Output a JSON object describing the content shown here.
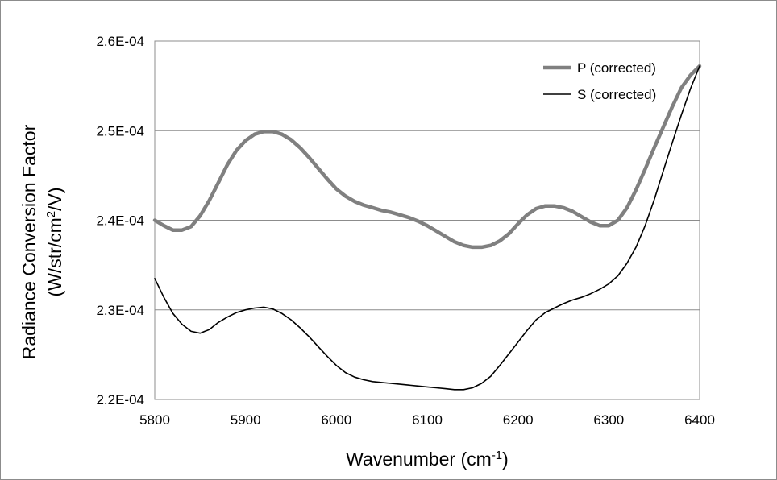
{
  "chart_data": {
    "type": "line",
    "title": "",
    "xlabel": {
      "base": "Wavenumber (cm",
      "sup": "-1",
      "tail": ")"
    },
    "ylabel": {
      "line1": "Radiance Conversion Factor",
      "line2_base": "(W/str/cm",
      "line2_sup": "2",
      "line2_tail": "/V)"
    },
    "xlim": [
      5800,
      6400
    ],
    "ylim": [
      0.00022,
      0.00026
    ],
    "xticks": [
      5800,
      5900,
      6000,
      6100,
      6200,
      6300,
      6400
    ],
    "xtick_labels": [
      "5800",
      "5900",
      "6000",
      "6100",
      "6200",
      "6300",
      "6400"
    ],
    "yticks": [
      0.00022,
      0.00023,
      0.00024,
      0.00025,
      0.00026
    ],
    "ytick_labels": [
      "2.2E-04",
      "2.3E-04",
      "2.4E-04",
      "2.5E-04",
      "2.6E-04"
    ],
    "grid": "horizontal",
    "legend_position": "top-right",
    "series": [
      {
        "name": "P (corrected)",
        "color": "#808080",
        "x": [
          5800,
          5810,
          5820,
          5830,
          5840,
          5850,
          5860,
          5870,
          5880,
          5890,
          5900,
          5910,
          5920,
          5930,
          5940,
          5950,
          5960,
          5970,
          5980,
          5990,
          6000,
          6010,
          6020,
          6030,
          6040,
          6050,
          6060,
          6070,
          6080,
          6090,
          6100,
          6110,
          6120,
          6130,
          6140,
          6150,
          6160,
          6170,
          6180,
          6190,
          6200,
          6210,
          6220,
          6230,
          6240,
          6250,
          6260,
          6270,
          6280,
          6290,
          6300,
          6310,
          6320,
          6330,
          6340,
          6350,
          6360,
          6370,
          6380,
          6390,
          6400
        ],
        "y": [
          0.00024,
          0.0002394,
          0.0002389,
          0.0002389,
          0.0002393,
          0.0002405,
          0.0002422,
          0.0002442,
          0.0002462,
          0.0002478,
          0.0002489,
          0.0002496,
          0.0002499,
          0.0002499,
          0.0002496,
          0.000249,
          0.0002481,
          0.000247,
          0.0002458,
          0.0002446,
          0.0002435,
          0.0002427,
          0.0002421,
          0.0002417,
          0.0002414,
          0.0002411,
          0.0002409,
          0.0002406,
          0.0002403,
          0.0002399,
          0.0002394,
          0.0002388,
          0.0002382,
          0.0002376,
          0.0002372,
          0.000237,
          0.000237,
          0.0002372,
          0.0002377,
          0.0002385,
          0.0002396,
          0.0002406,
          0.0002413,
          0.0002416,
          0.0002416,
          0.0002414,
          0.000241,
          0.0002404,
          0.0002398,
          0.0002394,
          0.0002394,
          0.00024,
          0.0002414,
          0.0002434,
          0.0002457,
          0.0002481,
          0.0002504,
          0.0002527,
          0.0002548,
          0.0002562,
          0.0002572
        ]
      },
      {
        "name": "S (corrected)",
        "color": "#000000",
        "x": [
          5800,
          5810,
          5820,
          5830,
          5840,
          5850,
          5860,
          5870,
          5880,
          5890,
          5900,
          5910,
          5920,
          5930,
          5940,
          5950,
          5960,
          5970,
          5980,
          5990,
          6000,
          6010,
          6020,
          6030,
          6040,
          6050,
          6060,
          6070,
          6080,
          6090,
          6100,
          6110,
          6120,
          6130,
          6140,
          6150,
          6160,
          6170,
          6180,
          6190,
          6200,
          6210,
          6220,
          6230,
          6240,
          6250,
          6260,
          6270,
          6280,
          6290,
          6300,
          6310,
          6320,
          6330,
          6340,
          6350,
          6360,
          6370,
          6380,
          6390,
          6400
        ],
        "y": [
          0.0002335,
          0.0002314,
          0.0002296,
          0.0002284,
          0.0002276,
          0.0002274,
          0.0002278,
          0.0002286,
          0.0002292,
          0.0002297,
          0.00023,
          0.0002302,
          0.0002303,
          0.0002301,
          0.0002296,
          0.0002289,
          0.000228,
          0.000227,
          0.0002259,
          0.0002248,
          0.0002238,
          0.000223,
          0.0002225,
          0.0002222,
          0.000222,
          0.0002219,
          0.0002218,
          0.0002217,
          0.0002216,
          0.0002215,
          0.0002214,
          0.0002213,
          0.0002212,
          0.0002211,
          0.0002211,
          0.0002213,
          0.0002218,
          0.0002226,
          0.0002238,
          0.0002251,
          0.0002264,
          0.0002277,
          0.0002289,
          0.0002297,
          0.0002302,
          0.0002307,
          0.0002311,
          0.0002314,
          0.0002318,
          0.0002323,
          0.0002329,
          0.0002338,
          0.0002352,
          0.000237,
          0.0002394,
          0.0002423,
          0.0002455,
          0.0002487,
          0.0002518,
          0.0002547,
          0.0002572
        ]
      }
    ]
  }
}
